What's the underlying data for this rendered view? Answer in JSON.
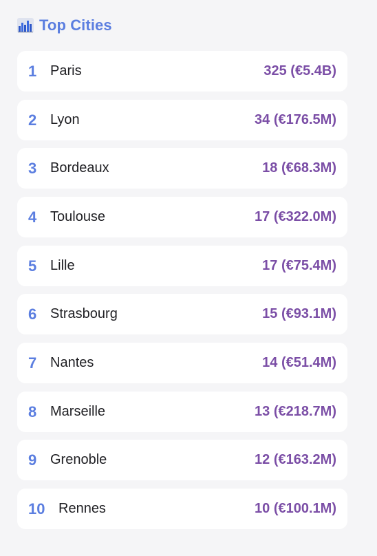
{
  "header": {
    "title": "Top Cities",
    "icon": "bar-chart-icon"
  },
  "cities": [
    {
      "rank": "1",
      "name": "Paris",
      "value": "325 (€5.4B)"
    },
    {
      "rank": "2",
      "name": "Lyon",
      "value": "34 (€176.5M)"
    },
    {
      "rank": "3",
      "name": "Bordeaux",
      "value": "18 (€68.3M)"
    },
    {
      "rank": "4",
      "name": "Toulouse",
      "value": "17 (€322.0M)"
    },
    {
      "rank": "5",
      "name": "Lille",
      "value": "17 (€75.4M)"
    },
    {
      "rank": "6",
      "name": "Strasbourg",
      "value": "15 (€93.1M)"
    },
    {
      "rank": "7",
      "name": "Nantes",
      "value": "14 (€51.4M)"
    },
    {
      "rank": "8",
      "name": "Marseille",
      "value": "13 (€218.7M)"
    },
    {
      "rank": "9",
      "name": "Grenoble",
      "value": "12 (€163.2M)"
    },
    {
      "rank": "10",
      "name": "Rennes",
      "value": "10 (€100.1M)"
    }
  ],
  "colors": {
    "accent_blue": "#5b7ee0",
    "value_purple": "#7b4ea6",
    "row_bg": "#ffffff",
    "page_bg": "#f5f5f7"
  }
}
